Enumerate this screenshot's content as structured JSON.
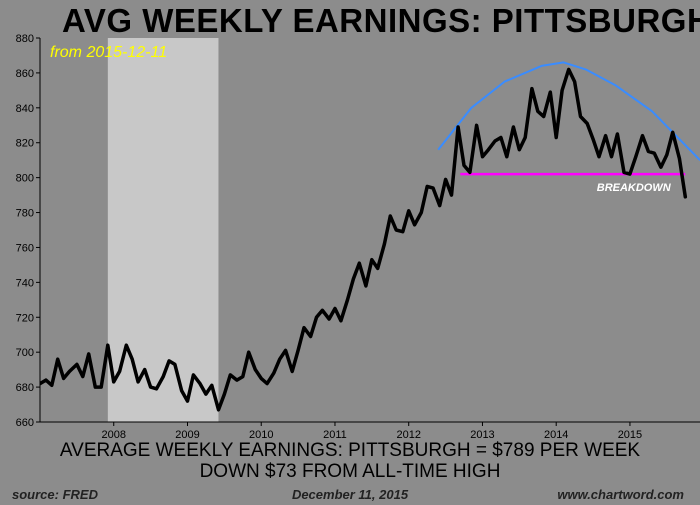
{
  "title": "AVG WEEKLY EARNINGS: PITTSBURGH",
  "subtitle": "from 2015-12-11",
  "caption_line1": "AVERAGE WEEKLY EARNINGS: PITTSBURGH = $789 PER WEEK",
  "caption_line2": "DOWN $73 FROM ALL-TIME HIGH",
  "footer": {
    "source": "source: FRED",
    "date": "December 11, 2015",
    "site": "www.chartword.com"
  },
  "colors": {
    "background": "#8c8c8c",
    "recession": "#c8c8c8",
    "series": "#000000",
    "trend_arc": "#3a8cff",
    "support_line": "#ff00ff",
    "subtitle": "#ffff00"
  },
  "chart_data": {
    "type": "line",
    "xlim": [
      2007.0,
      2015.95
    ],
    "ylim": [
      660,
      880
    ],
    "yticks": [
      660,
      680,
      700,
      720,
      740,
      760,
      780,
      800,
      820,
      840,
      860,
      880
    ],
    "xticks": [
      {
        "label": "2008",
        "x": 2008.0
      },
      {
        "label": "2009",
        "x": 2009.0
      },
      {
        "label": "2010",
        "x": 2010.0
      },
      {
        "label": "2011",
        "x": 2011.0
      },
      {
        "label": "2012",
        "x": 2012.0
      },
      {
        "label": "2013",
        "x": 2013.0
      },
      {
        "label": "2014",
        "x": 2014.0
      },
      {
        "label": "2015",
        "x": 2015.0
      }
    ],
    "grid": false,
    "recession": {
      "start": 2007.92,
      "end": 2009.42
    },
    "series": [
      {
        "points": [
          [
            2007.0,
            682
          ],
          [
            2007.08,
            684
          ],
          [
            2007.16,
            681
          ],
          [
            2007.24,
            696
          ],
          [
            2007.32,
            685
          ],
          [
            2007.4,
            689
          ],
          [
            2007.5,
            693
          ],
          [
            2007.58,
            686
          ],
          [
            2007.66,
            699
          ],
          [
            2007.75,
            680
          ],
          [
            2007.83,
            680
          ],
          [
            2007.92,
            704
          ],
          [
            2008.0,
            683
          ],
          [
            2008.08,
            689
          ],
          [
            2008.17,
            704
          ],
          [
            2008.25,
            696
          ],
          [
            2008.33,
            683
          ],
          [
            2008.42,
            690
          ],
          [
            2008.5,
            680
          ],
          [
            2008.58,
            679
          ],
          [
            2008.67,
            686
          ],
          [
            2008.75,
            695
          ],
          [
            2008.83,
            693
          ],
          [
            2008.92,
            678
          ],
          [
            2009.0,
            672
          ],
          [
            2009.08,
            687
          ],
          [
            2009.17,
            682
          ],
          [
            2009.25,
            676
          ],
          [
            2009.33,
            681
          ],
          [
            2009.42,
            667
          ],
          [
            2009.5,
            676
          ],
          [
            2009.58,
            687
          ],
          [
            2009.67,
            684
          ],
          [
            2009.75,
            686
          ],
          [
            2009.83,
            700
          ],
          [
            2009.92,
            690
          ],
          [
            2010.0,
            685
          ],
          [
            2010.08,
            682
          ],
          [
            2010.17,
            688
          ],
          [
            2010.25,
            696
          ],
          [
            2010.33,
            701
          ],
          [
            2010.42,
            689
          ],
          [
            2010.5,
            701
          ],
          [
            2010.58,
            714
          ],
          [
            2010.67,
            709
          ],
          [
            2010.75,
            720
          ],
          [
            2010.83,
            724
          ],
          [
            2010.92,
            719
          ],
          [
            2011.0,
            725
          ],
          [
            2011.08,
            718
          ],
          [
            2011.17,
            730
          ],
          [
            2011.25,
            742
          ],
          [
            2011.33,
            751
          ],
          [
            2011.42,
            738
          ],
          [
            2011.5,
            753
          ],
          [
            2011.58,
            748
          ],
          [
            2011.67,
            762
          ],
          [
            2011.75,
            778
          ],
          [
            2011.83,
            770
          ],
          [
            2011.92,
            769
          ],
          [
            2012.0,
            781
          ],
          [
            2012.08,
            773
          ],
          [
            2012.17,
            780
          ],
          [
            2012.25,
            795
          ],
          [
            2012.33,
            794
          ],
          [
            2012.42,
            784
          ],
          [
            2012.5,
            799
          ],
          [
            2012.58,
            790
          ],
          [
            2012.67,
            829
          ],
          [
            2012.75,
            807
          ],
          [
            2012.83,
            803
          ],
          [
            2012.92,
            830
          ],
          [
            2013.0,
            812
          ],
          [
            2013.08,
            816
          ],
          [
            2013.17,
            821
          ],
          [
            2013.25,
            823
          ],
          [
            2013.33,
            812
          ],
          [
            2013.42,
            829
          ],
          [
            2013.5,
            816
          ],
          [
            2013.58,
            823
          ],
          [
            2013.67,
            851
          ],
          [
            2013.75,
            838
          ],
          [
            2013.83,
            835
          ],
          [
            2013.92,
            849
          ],
          [
            2014.0,
            823
          ],
          [
            2014.08,
            850
          ],
          [
            2014.17,
            862
          ],
          [
            2014.25,
            855
          ],
          [
            2014.33,
            835
          ],
          [
            2014.42,
            831
          ],
          [
            2014.5,
            822
          ],
          [
            2014.58,
            812
          ],
          [
            2014.67,
            824
          ],
          [
            2014.75,
            812
          ],
          [
            2014.83,
            825
          ],
          [
            2014.92,
            803
          ],
          [
            2015.0,
            802
          ],
          [
            2015.08,
            812
          ],
          [
            2015.17,
            824
          ],
          [
            2015.25,
            815
          ],
          [
            2015.33,
            814
          ],
          [
            2015.42,
            806
          ],
          [
            2015.5,
            813
          ],
          [
            2015.58,
            826
          ],
          [
            2015.67,
            811
          ],
          [
            2015.75,
            789
          ]
        ]
      }
    ],
    "overlays": {
      "trend_arc": [
        [
          2012.4,
          816
        ],
        [
          2012.85,
          840
        ],
        [
          2013.3,
          855
        ],
        [
          2013.8,
          864
        ],
        [
          2014.1,
          866
        ],
        [
          2014.4,
          862
        ],
        [
          2014.8,
          853
        ],
        [
          2015.3,
          838
        ],
        [
          2015.95,
          810
        ]
      ],
      "support_line": {
        "y": 802,
        "x_start": 2012.7,
        "x_end": 2015.75,
        "label": "BREAKDOWN"
      }
    }
  }
}
